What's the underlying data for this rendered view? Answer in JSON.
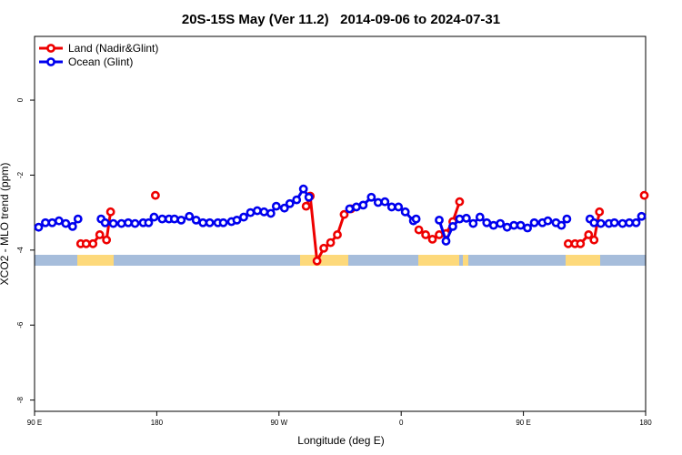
{
  "chart_data": {
    "type": "line",
    "title": "20S-15S May (Ver 11.2)   2014-09-06 to 2024-07-31",
    "x_label": "Longitude (deg E)",
    "y_label": "XCO2 - MLO trend (ppm)",
    "xlim": [
      90,
      540
    ],
    "ylim": [
      -8.3,
      1.7
    ],
    "xticks": [
      {
        "value": 90,
        "label": "90 E"
      },
      {
        "value": 180,
        "label": "180"
      },
      {
        "value": 270,
        "label": "90 W"
      },
      {
        "value": 360,
        "label": "0"
      },
      {
        "value": 450,
        "label": "90 E"
      },
      {
        "value": 540,
        "label": "180"
      }
    ],
    "yticks": [
      0,
      -2,
      -4,
      -6,
      -8
    ],
    "legend": "top-left",
    "series": [
      {
        "name": "Land (Nadir&Glint)",
        "color": "#ee0000",
        "x": [
          124,
          128,
          133,
          138,
          143,
          146,
          160,
          179,
          230,
          290,
          293,
          298,
          303,
          308,
          313,
          318,
          323,
          350,
          373,
          378,
          383,
          388,
          393,
          398,
          403,
          440,
          483,
          488,
          492,
          498,
          502,
          506,
          520,
          539
        ],
        "values": [
          -3.83,
          -3.83,
          -3.83,
          -3.59,
          -3.73,
          -2.98,
          null,
          -2.54,
          null,
          -2.83,
          -2.56,
          -4.29,
          -3.95,
          -3.8,
          -3.59,
          -3.05,
          -2.9,
          null,
          -3.46,
          -3.59,
          -3.71,
          -3.59,
          -3.56,
          -3.24,
          -2.71,
          null,
          -3.83,
          -3.83,
          -3.83,
          -3.59,
          -3.73,
          -2.98,
          null,
          -2.54
        ]
      },
      {
        "name": "Ocean (Glint)",
        "color": "#0000ee",
        "x": [
          93,
          98,
          103,
          108,
          113,
          118,
          122,
          130,
          139,
          142,
          148,
          154,
          159,
          164,
          170,
          174,
          178,
          184,
          189,
          193,
          198,
          204,
          209,
          214,
          219,
          225,
          229,
          235,
          239,
          244,
          249,
          254,
          259,
          264,
          268,
          274,
          278,
          283,
          288,
          292,
          305,
          322,
          327,
          332,
          338,
          343,
          348,
          353,
          358,
          363,
          369,
          371,
          380,
          388,
          393,
          398,
          403,
          408,
          413,
          418,
          423,
          428,
          433,
          438,
          443,
          448,
          453,
          458,
          464,
          468,
          474,
          478,
          482,
          490,
          499,
          502,
          507,
          513,
          517,
          523,
          528,
          533,
          537
        ],
        "values": [
          -3.39,
          -3.27,
          -3.27,
          -3.22,
          -3.29,
          -3.37,
          -3.17,
          null,
          -3.17,
          -3.27,
          -3.29,
          -3.29,
          -3.27,
          -3.29,
          -3.27,
          -3.27,
          -3.12,
          -3.17,
          -3.17,
          -3.17,
          -3.2,
          -3.1,
          -3.2,
          -3.27,
          -3.27,
          -3.27,
          -3.27,
          -3.24,
          -3.2,
          -3.12,
          -3.0,
          -2.95,
          -2.98,
          -3.02,
          -2.83,
          -2.88,
          -2.76,
          -2.66,
          -2.37,
          -2.59,
          null,
          -2.9,
          -2.85,
          -2.8,
          -2.59,
          -2.73,
          -2.71,
          -2.85,
          -2.85,
          -2.98,
          -3.22,
          -3.17,
          null,
          -3.2,
          -3.76,
          -3.37,
          -3.17,
          -3.15,
          -3.29,
          -3.12,
          -3.27,
          -3.34,
          -3.29,
          -3.39,
          -3.34,
          -3.34,
          -3.41,
          -3.27,
          -3.27,
          -3.22,
          -3.27,
          -3.34,
          -3.17,
          null,
          -3.17,
          -3.27,
          -3.29,
          -3.29,
          -3.27,
          -3.29,
          -3.27,
          -3.27,
          -3.1
        ]
      }
    ]
  }
}
